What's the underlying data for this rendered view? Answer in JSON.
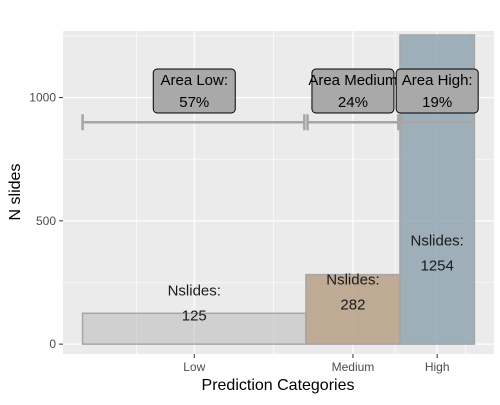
{
  "chart_data": {
    "type": "bar",
    "xlabel": "Prediction Categories",
    "ylabel": "N slides",
    "ylim": [
      -40,
      1270
    ],
    "yticks": [
      0,
      500,
      1000
    ],
    "grid": true,
    "categories": [
      {
        "name": "Low",
        "x_start": 0.0,
        "x_end": 0.57,
        "tick": 0.285,
        "count": 125,
        "label_line1": "Nslides:",
        "label_line2": "125",
        "fill": "#b0b0b0",
        "fill_opacity": 0.45,
        "stroke": "#a6a6a6"
      },
      {
        "name": "Medium",
        "x_start": 0.57,
        "x_end": 0.81,
        "tick": 0.69,
        "count": 282,
        "label_line1": "Nslides:",
        "label_line2": "282",
        "fill": "#b7a086",
        "fill_opacity": 0.85,
        "stroke": "#a6a6a6"
      },
      {
        "name": "High",
        "x_start": 0.81,
        "x_end": 1.0,
        "tick": 0.905,
        "count": 1254,
        "label_line1": "Nslides:",
        "label_line2": "1254",
        "fill": "#90a5b2",
        "fill_opacity": 0.85,
        "stroke": "#a6a6a6"
      }
    ],
    "xlim": [
      -0.05,
      1.05
    ],
    "area_bracket_y": 900,
    "area_boxes": [
      {
        "line1": "Area Low:",
        "line2": "57%",
        "x_center": 0.285
      },
      {
        "line1": "Area Medium",
        "line2": "24%",
        "x_center": 0.69
      },
      {
        "line1": "Area High:",
        "line2": "19%",
        "x_center": 0.905
      }
    ],
    "colors": {
      "panel": "#ebebeb",
      "grid": "#ffffff",
      "bracket": "#a6a6a6",
      "label_box": "#a9a9a9"
    }
  }
}
